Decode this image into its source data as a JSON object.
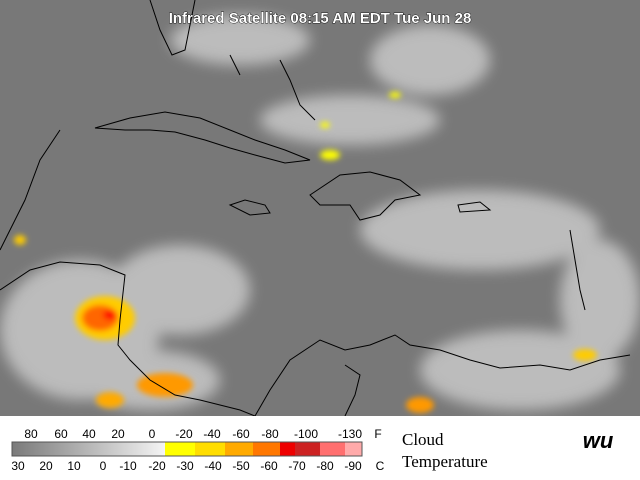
{
  "title": "Infrared Satellite 08:15 AM EDT Tue Jun 28",
  "legend": {
    "fahrenheit": {
      "labels": [
        80,
        60,
        40,
        20,
        0,
        -20,
        -40,
        -60,
        -80,
        -100,
        -130
      ],
      "unit": "F"
    },
    "celsius": {
      "labels": [
        30,
        20,
        10,
        0,
        -10,
        -20,
        -30,
        -40,
        -50,
        -60,
        -70,
        -80,
        -90
      ],
      "unit": "C"
    },
    "caption": [
      "Cloud",
      "Temperature"
    ]
  },
  "logo": "wu"
}
